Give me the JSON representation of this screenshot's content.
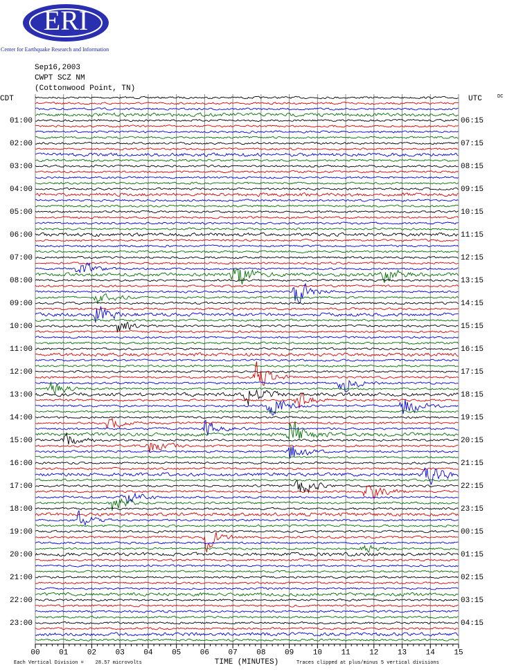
{
  "header": {
    "logo": "ERI",
    "org": "Center for Earthquake Research and Information",
    "date": "Sep16,2003",
    "station": "CWPT SCZ NM",
    "location": "(Cottonwood Point, TN)"
  },
  "axes": {
    "left_title": "CDT",
    "right_title": "UTC",
    "right_note": "DC",
    "left_labels": [
      "01:00",
      "02:00",
      "03:00",
      "04:00",
      "05:00",
      "06:00",
      "07:00",
      "08:00",
      "09:00",
      "10:00",
      "11:00",
      "12:00",
      "13:00",
      "14:00",
      "15:00",
      "16:00",
      "17:00",
      "18:00",
      "19:00",
      "20:00",
      "21:00",
      "22:00",
      "23:00"
    ],
    "right_labels": [
      "06:15",
      "07:15",
      "08:15",
      "09:15",
      "10:15",
      "11:15",
      "12:15",
      "13:15",
      "14:15",
      "15:15",
      "16:15",
      "17:15",
      "18:15",
      "19:15",
      "20:15",
      "21:15",
      "22:15",
      "23:15",
      "00:15",
      "01:15",
      "02:15",
      "03:15",
      "04:15"
    ],
    "x_labels": [
      "00",
      "01",
      "02",
      "03",
      "04",
      "05",
      "06",
      "07",
      "08",
      "09",
      "10",
      "11",
      "12",
      "13",
      "14",
      "15"
    ],
    "x_title": "TIME (MINUTES)"
  },
  "footer": {
    "scale": "Each Vertical Division =    28.57 microvolts",
    "clip": "Traces clipped at plus/minus 5 vertical divisions"
  }
}
